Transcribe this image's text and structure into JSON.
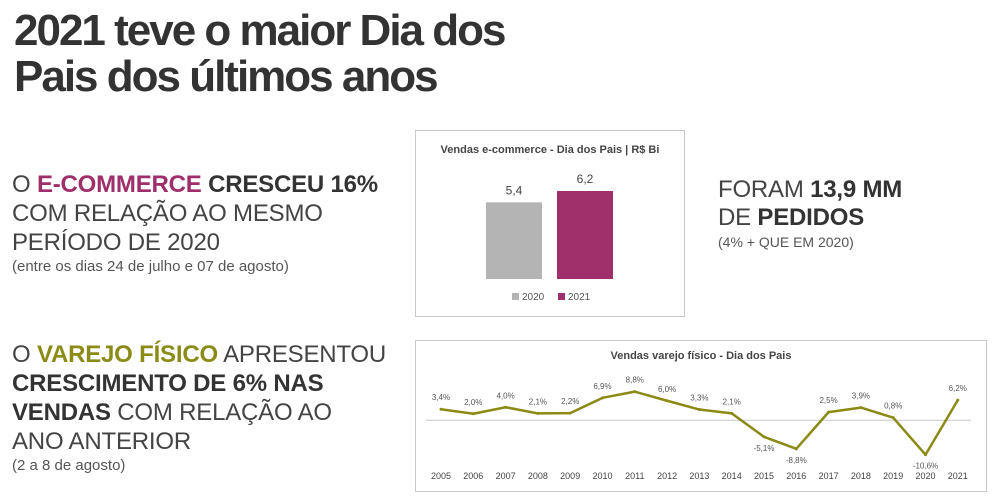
{
  "title_line1": "2021 teve o maior Dia dos",
  "title_line2": "Pais dos últimos anos",
  "ecommerce": {
    "prefix": "O ",
    "highlight": "E-COMMERCE",
    "bold_tail": " CRESCEU 16%",
    "line2": "COM RELAÇÃO AO MESMO",
    "line3": "PERÍODO DE 2020",
    "note": "(entre os dias 24 de julho e 07 de agosto)"
  },
  "varejo": {
    "prefix": "O ",
    "highlight": "VAREJO FÍSICO",
    "tail1": " APRESENTOU",
    "bold2": "CRESCIMENTO DE 6% NAS",
    "bold3": "VENDAS",
    "tail3": " COM RELAÇÃO AO",
    "line4": "ANO ANTERIOR",
    "note": "(2 a 8 de agosto)"
  },
  "pedidos": {
    "prefix": "FORAM ",
    "bold1": "13,9 MM",
    "line2_prefix": "DE ",
    "bold2": "PEDIDOS",
    "note": "(4% + QUE EM 2020)"
  },
  "colors": {
    "magenta": "#9e2f6b",
    "olive": "#8b8b17",
    "gray_bar": "#b4b4b4",
    "line": "#8a8a15",
    "axis": "#c8c8c8"
  },
  "chart_data": [
    {
      "type": "bar",
      "title": "Vendas e-commerce - Dia dos Pais | R$ Bi",
      "categories": [
        "2020",
        "2021"
      ],
      "values": [
        5.4,
        6.2
      ],
      "labels": [
        "5,4",
        "6,2"
      ],
      "legend": [
        "2020",
        "2021"
      ],
      "legend_position": "bottom",
      "ylim": [
        0,
        6.2
      ]
    },
    {
      "type": "line",
      "title": "Vendas varejo físico - Dia dos Pais",
      "x": [
        "2005",
        "2006",
        "2007",
        "2008",
        "2009",
        "2010",
        "2011",
        "2012",
        "2013",
        "2014",
        "2015",
        "2016",
        "2017",
        "2018",
        "2019",
        "2020",
        "2021"
      ],
      "values": [
        3.4,
        2.0,
        4.0,
        2.1,
        2.2,
        6.9,
        8.8,
        6.0,
        3.3,
        2.1,
        -5.1,
        -8.8,
        2.5,
        3.9,
        0.8,
        -10.6,
        6.2
      ],
      "labels": [
        "3,4%",
        "2,0%",
        "4,0%",
        "2,1%",
        "2,2%",
        "6,9%",
        "8,8%",
        "6,0%",
        "3,3%",
        "2,1%",
        "-5,1%",
        "-8,8%",
        "2,5%",
        "3,9%",
        "0,8%",
        "-10,6%",
        "6,2%"
      ],
      "ylim": [
        -11,
        9
      ]
    }
  ]
}
